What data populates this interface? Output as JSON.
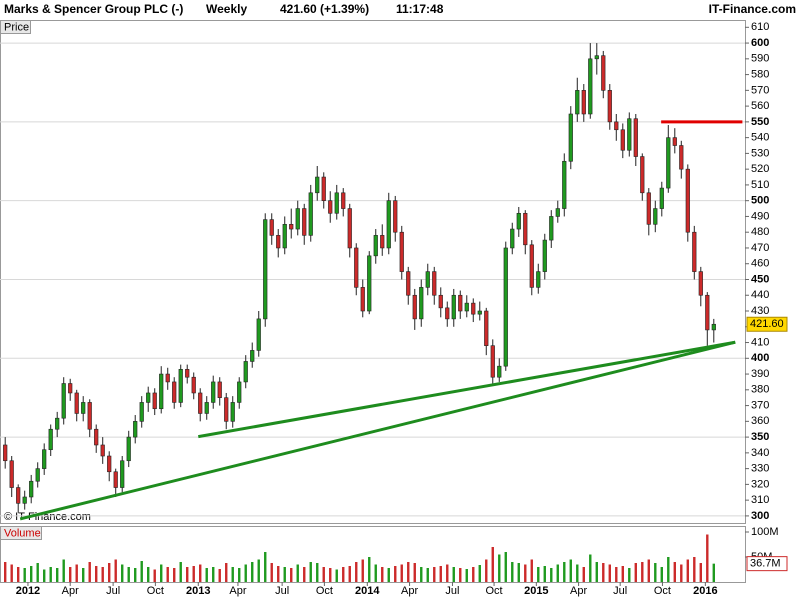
{
  "chart_data": {
    "type": "candlestick",
    "title": "Marks & Spencer Group PLC (-)",
    "interval": "Weekly",
    "quote": "421.60 (+1.39%)",
    "time": "11:17:48",
    "source": "IT-Finance.com",
    "watermark": "© IT-Finance.com",
    "price_pane_label": "Price",
    "volume_pane_label": "Volume",
    "up_color": "#1f9a1f",
    "down_color": "#cc2a2a",
    "xlim": [
      -0.8,
      113.8
    ],
    "xticks": [
      {
        "value": 3.5,
        "label": "2012"
      },
      {
        "value": 10,
        "label": "Apr"
      },
      {
        "value": 16.6,
        "label": "Jul"
      },
      {
        "value": 23.1,
        "label": "Oct"
      },
      {
        "value": 29.7,
        "label": "2013"
      },
      {
        "value": 35.8,
        "label": "Apr"
      },
      {
        "value": 42.6,
        "label": "Jul"
      },
      {
        "value": 49.1,
        "label": "Oct"
      },
      {
        "value": 55.7,
        "label": "2014"
      },
      {
        "value": 62.2,
        "label": "Apr"
      },
      {
        "value": 68.8,
        "label": "Jul"
      },
      {
        "value": 75.2,
        "label": "Oct"
      },
      {
        "value": 81.7,
        "label": "2015"
      },
      {
        "value": 88.2,
        "label": "Apr"
      },
      {
        "value": 94.6,
        "label": "Jul"
      },
      {
        "value": 101.1,
        "label": "Oct"
      },
      {
        "value": 107.7,
        "label": "2016"
      }
    ],
    "ylim": [
      295.5,
      614
    ],
    "yticks": [
      300,
      310,
      320,
      330,
      340,
      350,
      360,
      370,
      380,
      390,
      400,
      410,
      420,
      430,
      440,
      450,
      460,
      470,
      480,
      490,
      500,
      510,
      520,
      530,
      540,
      550,
      560,
      570,
      580,
      590,
      600,
      610
    ],
    "last_price": {
      "value": 421.6,
      "label": "421.60"
    },
    "open": [
      345,
      335,
      318,
      308,
      312,
      322,
      330,
      342,
      355,
      362,
      384,
      378,
      365,
      372,
      355,
      345,
      338,
      328,
      318,
      335,
      350,
      360,
      372,
      378,
      368,
      390,
      385,
      372,
      393,
      388,
      378,
      365,
      372,
      385,
      375,
      360,
      372,
      385,
      398,
      405,
      425,
      488,
      478,
      470,
      485,
      482,
      495,
      478,
      505,
      515,
      500,
      492,
      505,
      495,
      470,
      445,
      430,
      465,
      478,
      470,
      500,
      480,
      455,
      440,
      425,
      445,
      455,
      440,
      432,
      425,
      440,
      430,
      435,
      428,
      430,
      408,
      388,
      395,
      470,
      482,
      492,
      472,
      445,
      455,
      475,
      490,
      495,
      525,
      555,
      570,
      555,
      590,
      592,
      570,
      550,
      545,
      532,
      552,
      528,
      505,
      485,
      495,
      508,
      540,
      535,
      520,
      480,
      455,
      440,
      418
    ],
    "high": [
      350,
      338,
      320,
      316,
      326,
      334,
      346,
      358,
      366,
      388,
      387,
      380,
      376,
      374,
      358,
      350,
      341,
      330,
      338,
      354,
      364,
      376,
      382,
      381,
      395,
      394,
      388,
      396,
      396,
      391,
      381,
      376,
      389,
      388,
      378,
      376,
      388,
      402,
      410,
      430,
      492,
      492,
      482,
      490,
      495,
      500,
      498,
      510,
      522,
      518,
      506,
      510,
      508,
      498,
      473,
      450,
      468,
      482,
      485,
      505,
      503,
      484,
      458,
      444,
      450,
      460,
      458,
      445,
      436,
      444,
      443,
      440,
      438,
      436,
      432,
      412,
      400,
      474,
      486,
      496,
      494,
      475,
      460,
      479,
      494,
      500,
      530,
      560,
      578,
      574,
      600,
      600,
      595,
      574,
      555,
      549,
      556,
      555,
      530,
      508,
      500,
      512,
      548,
      546,
      538,
      523,
      484,
      458,
      442,
      425
    ],
    "low": [
      330,
      312,
      302,
      304,
      308,
      318,
      326,
      338,
      350,
      358,
      373,
      360,
      360,
      350,
      340,
      333,
      322,
      312,
      315,
      331,
      346,
      356,
      366,
      364,
      365,
      380,
      368,
      369,
      384,
      374,
      360,
      361,
      368,
      370,
      355,
      356,
      368,
      381,
      394,
      401,
      420,
      472,
      464,
      466,
      476,
      478,
      472,
      474,
      500,
      495,
      486,
      488,
      490,
      464,
      440,
      426,
      428,
      460,
      465,
      466,
      474,
      450,
      434,
      418,
      420,
      440,
      434,
      426,
      420,
      420,
      425,
      426,
      423,
      424,
      402,
      383,
      385,
      392,
      466,
      477,
      466,
      440,
      441,
      450,
      470,
      486,
      490,
      520,
      550,
      550,
      552,
      580,
      565,
      545,
      538,
      527,
      528,
      522,
      500,
      478,
      480,
      490,
      505,
      530,
      514,
      474,
      450,
      433,
      408,
      410
    ],
    "close": [
      335,
      318,
      308,
      312,
      322,
      330,
      342,
      355,
      362,
      384,
      378,
      365,
      372,
      355,
      345,
      338,
      328,
      318,
      335,
      350,
      360,
      372,
      378,
      368,
      390,
      385,
      372,
      393,
      388,
      378,
      365,
      372,
      385,
      375,
      360,
      372,
      385,
      398,
      405,
      425,
      488,
      478,
      470,
      485,
      482,
      495,
      478,
      505,
      515,
      500,
      492,
      505,
      495,
      470,
      445,
      430,
      465,
      478,
      470,
      500,
      480,
      455,
      440,
      425,
      445,
      455,
      440,
      432,
      425,
      440,
      430,
      435,
      428,
      430,
      408,
      388,
      395,
      470,
      482,
      492,
      472,
      445,
      455,
      475,
      490,
      495,
      525,
      555,
      570,
      555,
      590,
      592,
      570,
      550,
      545,
      532,
      552,
      528,
      505,
      485,
      495,
      508,
      540,
      535,
      520,
      480,
      455,
      440,
      418,
      421.6
    ],
    "volume": {
      "ylim": [
        0,
        110
      ],
      "yticks": [
        {
          "value": 100,
          "label": "100M"
        },
        {
          "value": 50,
          "label": "50M"
        }
      ],
      "values": [
        40,
        35,
        30,
        28,
        32,
        38,
        25,
        30,
        28,
        45,
        30,
        35,
        28,
        40,
        32,
        30,
        38,
        45,
        35,
        30,
        28,
        42,
        30,
        25,
        35,
        30,
        28,
        40,
        30,
        32,
        35,
        28,
        30,
        26,
        38,
        30,
        28,
        35,
        40,
        45,
        60,
        38,
        32,
        30,
        28,
        35,
        30,
        40,
        38,
        30,
        28,
        25,
        30,
        32,
        40,
        45,
        50,
        35,
        30,
        28,
        32,
        35,
        40,
        38,
        30,
        28,
        30,
        32,
        35,
        30,
        28,
        26,
        30,
        34,
        45,
        70,
        55,
        60,
        40,
        38,
        35,
        45,
        30,
        32,
        28,
        35,
        40,
        45,
        35,
        30,
        55,
        40,
        38,
        35,
        30,
        32,
        28,
        38,
        40,
        45,
        38,
        30,
        50,
        40,
        35,
        45,
        50,
        38,
        95,
        36.7
      ],
      "last": {
        "value": 36.7,
        "label": "36.7M"
      }
    },
    "annotations": [
      {
        "color": "#1e8c1e",
        "x": [
          29.7,
          112.3
        ],
        "y": [
          350.3,
          410.2
        ]
      },
      {
        "color": "#1e8c1e",
        "x": [
          2.3,
          112.3
        ],
        "y": [
          298.1,
          410.2
        ]
      },
      {
        "color": "#e00000",
        "x": [
          100.9,
          113.4
        ],
        "y": [
          550,
          550
        ]
      }
    ]
  }
}
